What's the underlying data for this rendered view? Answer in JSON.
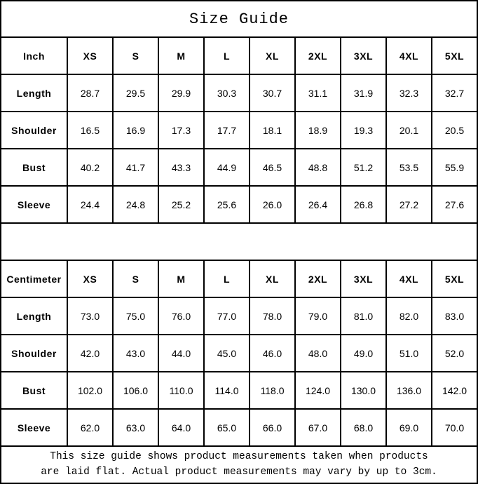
{
  "title": "Size Guide",
  "sizes": [
    "XS",
    "S",
    "M",
    "L",
    "XL",
    "2XL",
    "3XL",
    "4XL",
    "5XL"
  ],
  "tables": [
    {
      "unit_label": "Inch",
      "rows": [
        {
          "label": "Length",
          "values": [
            "28.7",
            "29.5",
            "29.9",
            "30.3",
            "30.7",
            "31.1",
            "31.9",
            "32.3",
            "32.7"
          ]
        },
        {
          "label": "Shoulder",
          "values": [
            "16.5",
            "16.9",
            "17.3",
            "17.7",
            "18.1",
            "18.9",
            "19.3",
            "20.1",
            "20.5"
          ]
        },
        {
          "label": "Bust",
          "values": [
            "40.2",
            "41.7",
            "43.3",
            "44.9",
            "46.5",
            "48.8",
            "51.2",
            "53.5",
            "55.9"
          ]
        },
        {
          "label": "Sleeve",
          "values": [
            "24.4",
            "24.8",
            "25.2",
            "25.6",
            "26.0",
            "26.4",
            "26.8",
            "27.2",
            "27.6"
          ]
        }
      ]
    },
    {
      "unit_label": "Centimeter",
      "rows": [
        {
          "label": "Length",
          "values": [
            "73.0",
            "75.0",
            "76.0",
            "77.0",
            "78.0",
            "79.0",
            "81.0",
            "82.0",
            "83.0"
          ]
        },
        {
          "label": "Shoulder",
          "values": [
            "42.0",
            "43.0",
            "44.0",
            "45.0",
            "46.0",
            "48.0",
            "49.0",
            "51.0",
            "52.0"
          ]
        },
        {
          "label": "Bust",
          "values": [
            "102.0",
            "106.0",
            "110.0",
            "114.0",
            "118.0",
            "124.0",
            "130.0",
            "136.0",
            "142.0"
          ]
        },
        {
          "label": "Sleeve",
          "values": [
            "62.0",
            "63.0",
            "64.0",
            "65.0",
            "66.0",
            "67.0",
            "68.0",
            "69.0",
            "70.0"
          ]
        }
      ]
    }
  ],
  "footer": {
    "line1": "This size guide shows product measurements taken when products",
    "line2": "are laid flat. Actual product measurements may vary by up to 3cm."
  },
  "colors": {
    "border": "#000000",
    "text": "#000000",
    "background": "#ffffff"
  }
}
